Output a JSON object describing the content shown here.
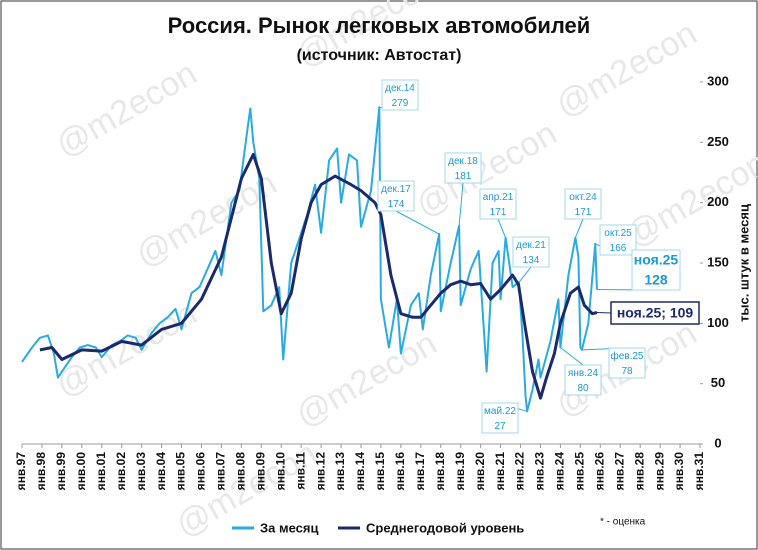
{
  "chart_data": {
    "type": "line",
    "title": "Россия. Рынок легковых автомобилей",
    "subtitle": "(источник: Автостат)",
    "y_label": "тыс. штук в месяц",
    "note": "* - оценка",
    "watermark": "@m2econ",
    "xlim": [
      1997,
      2031
    ],
    "xticks": [
      {
        "value": 1997,
        "label": "янв.97"
      },
      {
        "value": 1998,
        "label": "янв.98"
      },
      {
        "value": 1999,
        "label": "янв.99"
      },
      {
        "value": 2000,
        "label": "янв.00"
      },
      {
        "value": 2001,
        "label": "янв.01"
      },
      {
        "value": 2002,
        "label": "янв.02"
      },
      {
        "value": 2003,
        "label": "янв.03"
      },
      {
        "value": 2004,
        "label": "янв.04"
      },
      {
        "value": 2005,
        "label": "янв.05"
      },
      {
        "value": 2006,
        "label": "янв.06"
      },
      {
        "value": 2007,
        "label": "янв.07"
      },
      {
        "value": 2008,
        "label": "янв.08"
      },
      {
        "value": 2009,
        "label": "янв.09"
      },
      {
        "value": 2010,
        "label": "янв.10"
      },
      {
        "value": 2011,
        "label": "янв.11"
      },
      {
        "value": 2012,
        "label": "янв.12"
      },
      {
        "value": 2013,
        "label": "янв.13"
      },
      {
        "value": 2014,
        "label": "янв.14"
      },
      {
        "value": 2015,
        "label": "янв.15"
      },
      {
        "value": 2016,
        "label": "янв.16"
      },
      {
        "value": 2017,
        "label": "янв.17"
      },
      {
        "value": 2018,
        "label": "янв.18"
      },
      {
        "value": 2019,
        "label": "янв.19"
      },
      {
        "value": 2020,
        "label": "янв.20"
      },
      {
        "value": 2021,
        "label": "янв.21"
      },
      {
        "value": 2022,
        "label": "янв.22"
      },
      {
        "value": 2023,
        "label": "янв.23"
      },
      {
        "value": 2024,
        "label": "янв.24"
      },
      {
        "value": 2025,
        "label": "янв.25"
      },
      {
        "value": 2026,
        "label": "янв.26"
      },
      {
        "value": 2027,
        "label": "янв.27"
      },
      {
        "value": 2028,
        "label": "янв.28"
      },
      {
        "value": 2029,
        "label": "янв.29"
      },
      {
        "value": 2030,
        "label": "янв.30"
      },
      {
        "value": 2031,
        "label": "янв.31"
      }
    ],
    "ylim": [
      0,
      300
    ],
    "yticks": [
      0,
      50,
      100,
      150,
      200,
      250,
      300
    ],
    "series": [
      {
        "name": "За месяц",
        "color": "#29abe2",
        "x": [
          1997.0,
          1997.5,
          1997.9,
          1998.3,
          1998.6,
          1998.8,
          1999.0,
          1999.5,
          1999.9,
          2000.3,
          2000.7,
          2001.0,
          2001.5,
          2001.9,
          2002.3,
          2002.7,
          2003.0,
          2003.5,
          2003.9,
          2004.3,
          2004.7,
          2005.0,
          2005.5,
          2005.9,
          2006.3,
          2006.7,
          2007.0,
          2007.5,
          2007.9,
          2008.3,
          2008.45,
          2008.6,
          2008.9,
          2009.1,
          2009.5,
          2009.9,
          2010.1,
          2010.5,
          2010.9,
          2011.3,
          2011.7,
          2012.0,
          2012.4,
          2012.8,
          2013.0,
          2013.4,
          2013.8,
          2014.0,
          2014.5,
          2014.92,
          2015.0,
          2015.4,
          2015.8,
          2016.0,
          2016.5,
          2016.9,
          2017.1,
          2017.5,
          2017.92,
          2018.0,
          2018.5,
          2018.92,
          2019.0,
          2019.5,
          2019.9,
          2020.3,
          2020.6,
          2020.9,
          2021.0,
          2021.25,
          2021.6,
          2021.92,
          2022.1,
          2022.25,
          2022.33,
          2022.6,
          2022.9,
          2023.0,
          2023.5,
          2023.9,
          2024.0,
          2024.4,
          2024.75,
          2024.9,
          2025.0,
          2025.08,
          2025.4,
          2025.75,
          2025.83
        ],
        "values": [
          68,
          80,
          88,
          90,
          75,
          55,
          60,
          72,
          80,
          82,
          80,
          72,
          82,
          85,
          90,
          88,
          78,
          92,
          100,
          105,
          112,
          95,
          125,
          130,
          145,
          160,
          140,
          200,
          210,
          260,
          278,
          250,
          220,
          110,
          115,
          130,
          70,
          150,
          170,
          190,
          215,
          175,
          235,
          245,
          200,
          240,
          235,
          180,
          210,
          279,
          120,
          80,
          120,
          75,
          115,
          125,
          95,
          140,
          174,
          110,
          150,
          181,
          115,
          145,
          160,
          60,
          150,
          160,
          120,
          171,
          130,
          134,
          90,
          40,
          27,
          45,
          70,
          55,
          85,
          120,
          80,
          140,
          171,
          155,
          80,
          78,
          100,
          166,
          128
        ]
      },
      {
        "name": "Среднегодовой уровень",
        "color": "#1b2a6b",
        "x": [
          1997.9,
          1998.5,
          1999.0,
          2000.0,
          2001.0,
          2002.0,
          2003.0,
          2004.0,
          2005.0,
          2006.0,
          2007.0,
          2008.0,
          2008.6,
          2009.0,
          2009.5,
          2010.0,
          2010.5,
          2011.0,
          2011.5,
          2012.0,
          2012.7,
          2013.5,
          2014.0,
          2014.7,
          2015.0,
          2015.5,
          2016.0,
          2016.6,
          2017.0,
          2017.5,
          2018.0,
          2018.5,
          2019.0,
          2019.5,
          2020.0,
          2020.5,
          2021.0,
          2021.6,
          2021.9,
          2022.2,
          2022.6,
          2023.0,
          2023.3,
          2023.7,
          2024.0,
          2024.5,
          2024.9,
          2025.2,
          2025.6,
          2025.83
        ],
        "values": [
          78,
          80,
          70,
          78,
          77,
          85,
          82,
          95,
          100,
          120,
          155,
          220,
          240,
          220,
          150,
          108,
          125,
          170,
          200,
          215,
          222,
          215,
          210,
          200,
          190,
          140,
          108,
          105,
          105,
          115,
          125,
          132,
          135,
          132,
          133,
          120,
          128,
          140,
          132,
          100,
          60,
          38,
          55,
          75,
          100,
          125,
          130,
          115,
          108,
          109
        ]
      }
    ],
    "annotations": [
      {
        "label": "дек.14",
        "value": 279,
        "x": 2014.92
      },
      {
        "label": "дек.17",
        "value": 174,
        "x": 2017.92
      },
      {
        "label": "дек.18",
        "value": 181,
        "x": 2018.92
      },
      {
        "label": "апр.21",
        "value": 171,
        "x": 2021.25
      },
      {
        "label": "дек.21",
        "value": 134,
        "x": 2021.92
      },
      {
        "label": "май.22",
        "value": 27,
        "x": 2022.33
      },
      {
        "label": "янв.24",
        "value": 80,
        "x": 2024.0
      },
      {
        "label": "окт.24",
        "value": 171,
        "x": 2024.75
      },
      {
        "label": "окт.25",
        "value": 166,
        "x": 2025.75
      },
      {
        "label": "фев.25",
        "value": 78,
        "x": 2025.08
      },
      {
        "label": "ноя.25",
        "value": 128,
        "x": 2025.83
      },
      {
        "label": "ноя.25; 109",
        "value": 109,
        "x": 2025.83
      }
    ]
  }
}
